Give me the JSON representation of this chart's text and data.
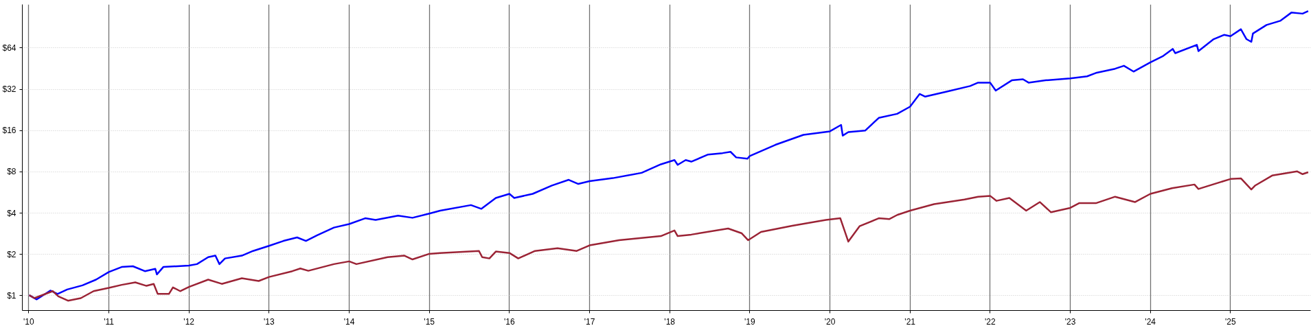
{
  "chart_data": {
    "type": "line",
    "log": "y",
    "grid": true,
    "line_style": "solid",
    "xlim": [
      2009.92,
      2026.0
    ],
    "xticks": [
      {
        "value": 2010,
        "label": "'10"
      },
      {
        "value": 2011,
        "label": "'11"
      },
      {
        "value": 2012,
        "label": "'12"
      },
      {
        "value": 2013,
        "label": "'13"
      },
      {
        "value": 2014,
        "label": "'14"
      },
      {
        "value": 2015,
        "label": "'15"
      },
      {
        "value": 2016,
        "label": "'16"
      },
      {
        "value": 2017,
        "label": "'17"
      },
      {
        "value": 2018,
        "label": "'18"
      },
      {
        "value": 2019,
        "label": "'19"
      },
      {
        "value": 2020,
        "label": "'20"
      },
      {
        "value": 2021,
        "label": "'21"
      },
      {
        "value": 2022,
        "label": "'22"
      },
      {
        "value": 2023,
        "label": "'23"
      },
      {
        "value": 2024,
        "label": "'24"
      },
      {
        "value": 2025,
        "label": "'25"
      }
    ],
    "ylim": [
      0.78,
      133
    ],
    "yticks": [
      {
        "value": 1,
        "label": "$1"
      },
      {
        "value": 2,
        "label": "$2"
      },
      {
        "value": 4,
        "label": "$4"
      },
      {
        "value": 8,
        "label": "$8"
      },
      {
        "value": 16,
        "label": "$16"
      },
      {
        "value": 32,
        "label": "$32"
      },
      {
        "value": 64,
        "label": "$64"
      }
    ],
    "series": [
      {
        "color": "#0000ff",
        "x": [
          2010.006,
          2010.1,
          2010.27,
          2010.36,
          2010.48,
          2010.67,
          2010.84,
          2011.0,
          2011.16,
          2011.3,
          2011.45,
          2011.58,
          2011.6,
          2011.68,
          2012.0,
          2012.1,
          2012.24,
          2012.33,
          2012.38,
          2012.45,
          2012.66,
          2012.8,
          2013.0,
          2013.18,
          2013.35,
          2013.46,
          2013.6,
          2013.81,
          2014.0,
          2014.2,
          2014.33,
          2014.61,
          2014.79,
          2015.0,
          2015.135,
          2015.52,
          2015.65,
          2015.83,
          2016.0,
          2016.06,
          2016.29,
          2016.53,
          2016.74,
          2016.86,
          2017.0,
          2017.29,
          2017.65,
          2017.89,
          2018.06,
          2018.1,
          2018.2,
          2018.27,
          2018.48,
          2018.66,
          2018.76,
          2018.83,
          2018.97,
          2019.0,
          2019.32,
          2019.67,
          2020.0,
          2020.14,
          2020.16,
          2020.23,
          2020.44,
          2020.61,
          2020.84,
          2021.0,
          2021.12,
          2021.19,
          2021.44,
          2021.75,
          2021.85,
          2022.0,
          2022.07,
          2022.27,
          2022.41,
          2022.48,
          2022.69,
          2023.0,
          2023.21,
          2023.32,
          2023.56,
          2023.67,
          2023.79,
          2024.0,
          2024.16,
          2024.28,
          2024.31,
          2024.58,
          2024.6,
          2024.79,
          2024.92,
          2025.0,
          2025.13,
          2025.2,
          2025.26,
          2025.28,
          2025.45,
          2025.62,
          2025.76,
          2025.9,
          2025.97
        ],
        "values": [
          1.01,
          0.94,
          1.09,
          1.03,
          1.11,
          1.19,
          1.31,
          1.49,
          1.62,
          1.64,
          1.51,
          1.57,
          1.43,
          1.62,
          1.66,
          1.7,
          1.91,
          1.96,
          1.7,
          1.87,
          1.96,
          2.12,
          2.31,
          2.51,
          2.66,
          2.51,
          2.76,
          3.14,
          3.33,
          3.67,
          3.57,
          3.84,
          3.7,
          3.97,
          4.17,
          4.58,
          4.3,
          5.16,
          5.53,
          5.16,
          5.53,
          6.36,
          7.0,
          6.53,
          6.84,
          7.2,
          7.87,
          9.08,
          9.75,
          9.0,
          9.75,
          9.5,
          10.7,
          10.96,
          11.2,
          10.2,
          9.97,
          10.45,
          12.6,
          14.9,
          15.8,
          17.6,
          14.7,
          15.6,
          16.0,
          19.8,
          21.2,
          23.9,
          29.6,
          28.3,
          30.6,
          33.8,
          35.8,
          35.8,
          31.3,
          37.2,
          37.9,
          35.8,
          37.2,
          38.4,
          39.8,
          42.1,
          45.2,
          47.5,
          43.1,
          50.3,
          56.0,
          63.0,
          58.7,
          67.5,
          60.8,
          74.3,
          79.8,
          78.0,
          87.7,
          74.3,
          71.0,
          81.6,
          94.3,
          101,
          116,
          114,
          119
        ]
      },
      {
        "color": "#9b2335",
        "x": [
          2010.006,
          2010.07,
          2010.3,
          2010.37,
          2010.49,
          2010.65,
          2010.81,
          2011.0,
          2011.16,
          2011.33,
          2011.47,
          2011.56,
          2011.61,
          2011.75,
          2011.8,
          2011.89,
          2012.0,
          2012.24,
          2012.41,
          2012.66,
          2012.87,
          2013.0,
          2013.29,
          2013.39,
          2013.49,
          2013.81,
          2014.0,
          2014.09,
          2014.48,
          2014.69,
          2014.79,
          2015.0,
          2015.135,
          2015.62,
          2015.66,
          2015.75,
          2015.83,
          2016.0,
          2016.11,
          2016.32,
          2016.6,
          2016.84,
          2017.0,
          2017.37,
          2017.89,
          2018.06,
          2018.1,
          2018.27,
          2018.73,
          2018.9,
          2018.98,
          2019.14,
          2019.53,
          2019.95,
          2020.13,
          2020.23,
          2020.37,
          2020.61,
          2020.74,
          2020.84,
          2021.0,
          2021.3,
          2021.68,
          2021.85,
          2022.0,
          2022.08,
          2022.24,
          2022.45,
          2022.62,
          2022.76,
          2023.0,
          2023.11,
          2023.32,
          2023.56,
          2023.81,
          2024.0,
          2024.27,
          2024.55,
          2024.6,
          2025.0,
          2025.13,
          2025.26,
          2025.31,
          2025.52,
          2025.83,
          2025.9,
          2025.97
        ],
        "values": [
          1.01,
          0.96,
          1.08,
          0.99,
          0.92,
          0.96,
          1.08,
          1.14,
          1.2,
          1.25,
          1.18,
          1.22,
          1.03,
          1.03,
          1.15,
          1.08,
          1.16,
          1.31,
          1.22,
          1.34,
          1.28,
          1.37,
          1.51,
          1.58,
          1.52,
          1.7,
          1.78,
          1.7,
          1.91,
          1.96,
          1.84,
          2.02,
          2.05,
          2.12,
          1.91,
          1.87,
          2.1,
          2.05,
          1.87,
          2.12,
          2.22,
          2.12,
          2.33,
          2.54,
          2.72,
          2.99,
          2.72,
          2.79,
          3.09,
          2.85,
          2.54,
          2.92,
          3.24,
          3.57,
          3.67,
          2.48,
          3.21,
          3.67,
          3.62,
          3.88,
          4.17,
          4.65,
          5.03,
          5.27,
          5.35,
          4.92,
          5.16,
          4.17,
          4.82,
          4.06,
          4.37,
          4.73,
          4.73,
          5.27,
          4.82,
          5.53,
          6.08,
          6.47,
          6.0,
          7.1,
          7.17,
          5.95,
          6.37,
          7.52,
          8.07,
          7.7,
          7.95
        ]
      }
    ]
  }
}
